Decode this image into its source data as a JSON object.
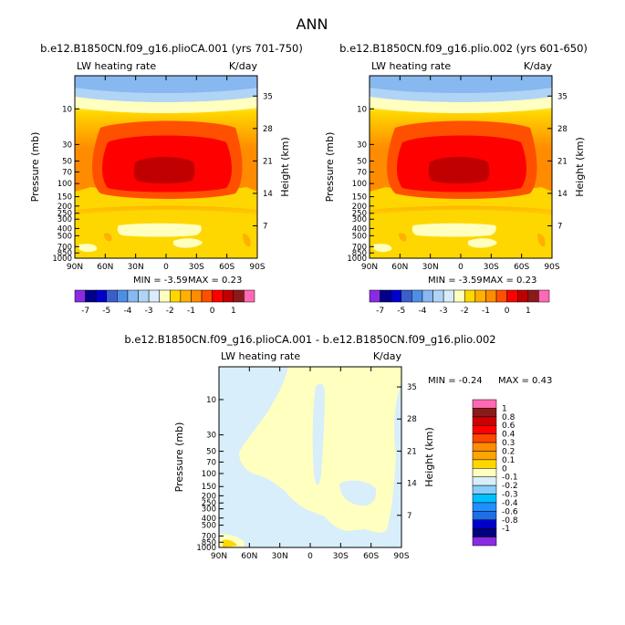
{
  "page_title": "ANN",
  "colors": {
    "cmap_abs": [
      "#8a2be2",
      "#00008b",
      "#0000cd",
      "#3a5fcd",
      "#4d8fe6",
      "#87b8f0",
      "#b0d4f5",
      "#d8ecfa",
      "#ffffc0",
      "#ffd700",
      "#ffb000",
      "#ff8c00",
      "#ff5000",
      "#ff0000",
      "#c00000",
      "#8b1a1a",
      "#ff69b4"
    ],
    "cmap_diff": [
      "#8a2be2",
      "#000080",
      "#0000cd",
      "#1e6ee6",
      "#1e90ff",
      "#00bfff",
      "#87cefa",
      "#d8eefa",
      "#ffffc0",
      "#ffd700",
      "#ffa500",
      "#ff8c00",
      "#ff4500",
      "#ff0000",
      "#cd0000",
      "#8b1a1a",
      "#ff69b4"
    ]
  },
  "chart_data": [
    {
      "type": "heatmap",
      "id": "panel1",
      "title": "b.e12.B1850CN.f09_g16.plioCA.001 (yrs 701-750)",
      "left_label": "LW heating rate",
      "right_label": "K/day",
      "xlabel": "",
      "ylabel": "Pressure (mb)",
      "y2label": "Height (km)",
      "x_ticks": [
        "90N",
        "60N",
        "30N",
        "0",
        "30S",
        "60S",
        "90S"
      ],
      "x_range": [
        90,
        -90
      ],
      "y_ticks": [
        10,
        30,
        50,
        70,
        100,
        150,
        200,
        250,
        300,
        400,
        500,
        700,
        850,
        1000
      ],
      "y_range": [
        1000,
        3.6
      ],
      "height_ticks": [
        35,
        28,
        21,
        14,
        7
      ],
      "min_label": "MIN = -3.59",
      "max_label": "MAX = 0.23",
      "min": -3.59,
      "max": 0.23
    },
    {
      "type": "heatmap",
      "id": "panel2",
      "title": "b.e12.B1850CN.f09_g16.plio.002 (yrs 601-650)",
      "left_label": "LW heating rate",
      "right_label": "K/day",
      "xlabel": "",
      "ylabel": "Pressure (mb)",
      "y2label": "Height (km)",
      "x_ticks": [
        "90N",
        "60N",
        "30N",
        "0",
        "30S",
        "60S",
        "90S"
      ],
      "x_range": [
        90,
        -90
      ],
      "y_ticks": [
        10,
        30,
        50,
        70,
        100,
        150,
        200,
        250,
        300,
        400,
        500,
        700,
        850,
        1000
      ],
      "y_range": [
        1000,
        3.6
      ],
      "height_ticks": [
        35,
        28,
        21,
        14,
        7
      ],
      "min_label": "MIN = -3.59",
      "max_label": "MAX = 0.23",
      "min": -3.59,
      "max": 0.23
    },
    {
      "type": "heatmap",
      "id": "panel3",
      "title": "b.e12.B1850CN.f09_g16.plioCA.001 - b.e12.B1850CN.f09_g16.plio.002",
      "left_label": "LW heating rate",
      "right_label": "K/day",
      "xlabel": "",
      "ylabel": "Pressure (mb)",
      "y2label": "Height (km)",
      "x_ticks": [
        "90N",
        "60N",
        "30N",
        "0",
        "30S",
        "60S",
        "90S"
      ],
      "x_range": [
        90,
        -90
      ],
      "y_ticks": [
        10,
        30,
        50,
        70,
        100,
        150,
        200,
        250,
        300,
        400,
        500,
        700,
        850,
        1000
      ],
      "y_range": [
        1000,
        3.6
      ],
      "height_ticks": [
        35,
        28,
        21,
        14,
        7
      ],
      "min_label": "MIN = -0.24",
      "max_label": "MAX = 0.43",
      "min": -0.24,
      "max": 0.43
    }
  ],
  "colorbar_abs": {
    "labels": [
      "-7",
      "-5",
      "-4",
      "-3",
      "-2",
      "-1",
      "0",
      "1"
    ]
  },
  "colorbar_diff": {
    "labels": [
      "1",
      "0.8",
      "0.6",
      "0.4",
      "0.3",
      "0.2",
      "0.1",
      "0",
      "-0.1",
      "-0.2",
      "-0.3",
      "-0.4",
      "-0.6",
      "-0.8",
      "-1"
    ]
  }
}
